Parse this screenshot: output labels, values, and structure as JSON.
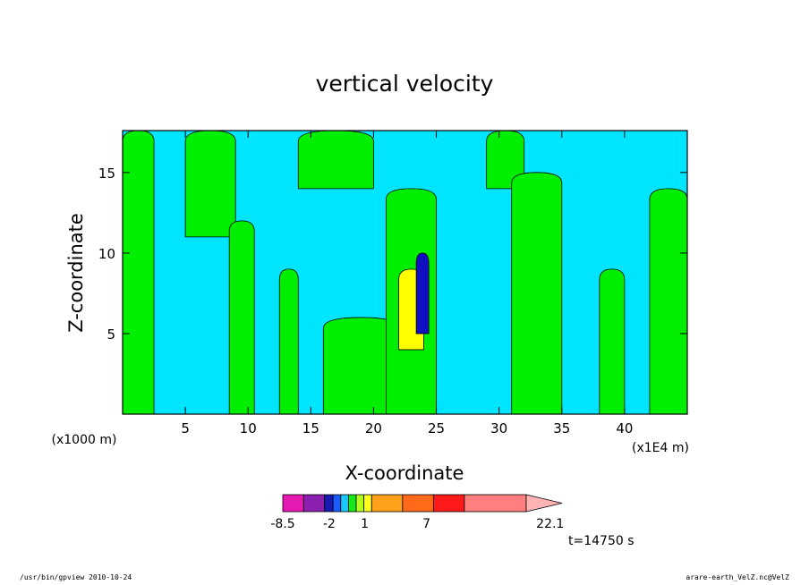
{
  "chart_data": {
    "type": "heatmap",
    "title": "vertical velocity",
    "xlabel": "X-coordinate",
    "ylabel": "Z-coordinate",
    "x_unit": "(x1E4 m)",
    "y_unit": "(x1000 m)",
    "xlim": [
      0,
      45
    ],
    "ylim": [
      0,
      17.6
    ],
    "x_ticks": [
      "5",
      "10",
      "15",
      "20",
      "25",
      "30",
      "35",
      "40"
    ],
    "x_tick_values": [
      5,
      10,
      15,
      20,
      25,
      30,
      35,
      40
    ],
    "y_ticks": [
      "5",
      "10",
      "15"
    ],
    "y_tick_values": [
      5,
      10,
      15
    ],
    "time_label": "t=14750 s",
    "colorbar": {
      "colors": [
        "#e619b3",
        "#8a1fb0",
        "#1a1ab0",
        "#1a5aff",
        "#19c8ff",
        "#19e619",
        "#b3ff1a",
        "#ffff1a",
        "#ffa01a",
        "#ff6a1a",
        "#ff1a1a",
        "#ff7f7f",
        "#ffb3b3"
      ],
      "labels": [
        "-8.5",
        "-2",
        "1",
        "7",
        "22.1"
      ],
      "label_positions": [
        0,
        3,
        5.3,
        9.3,
        17.3
      ],
      "widths": [
        1.35,
        1.35,
        0.55,
        0.5,
        0.5,
        0.5,
        0.5,
        0.5,
        2.0,
        2.0,
        2.0,
        4.0,
        2.4
      ]
    },
    "field": {
      "background": "#00e5ff",
      "positive_color": "#00ee00",
      "strong_up_color": "#ffff00",
      "strong_down_color": "#1010c0",
      "regions": [
        {
          "x": [
            0,
            2.5
          ],
          "z": [
            0,
            17.6
          ],
          "level": "positive"
        },
        {
          "x": [
            5,
            9
          ],
          "z": [
            11,
            17.6
          ],
          "level": "positive"
        },
        {
          "x": [
            8.5,
            10.5
          ],
          "z": [
            0,
            12
          ],
          "level": "positive"
        },
        {
          "x": [
            12.5,
            14
          ],
          "z": [
            0,
            9
          ],
          "level": "positive"
        },
        {
          "x": [
            14,
            20
          ],
          "z": [
            14,
            17.6
          ],
          "level": "positive"
        },
        {
          "x": [
            16,
            22
          ],
          "z": [
            0,
            6
          ],
          "level": "positive"
        },
        {
          "x": [
            21,
            25
          ],
          "z": [
            0,
            14
          ],
          "level": "positive"
        },
        {
          "x": [
            22,
            24
          ],
          "z": [
            4,
            9
          ],
          "level": "strong_up"
        },
        {
          "x": [
            23.4,
            24.4
          ],
          "z": [
            5,
            10
          ],
          "level": "strong_down"
        },
        {
          "x": [
            29,
            32
          ],
          "z": [
            14,
            17.6
          ],
          "level": "positive"
        },
        {
          "x": [
            31,
            35
          ],
          "z": [
            0,
            15
          ],
          "level": "positive"
        },
        {
          "x": [
            38,
            40
          ],
          "z": [
            0,
            9
          ],
          "level": "positive"
        },
        {
          "x": [
            42,
            45
          ],
          "z": [
            0,
            14
          ],
          "level": "positive"
        }
      ]
    }
  },
  "footer": {
    "left": "/usr/bin/gpview   2010-10-24",
    "right": "arare-earth_VelZ.nc@VelZ"
  }
}
